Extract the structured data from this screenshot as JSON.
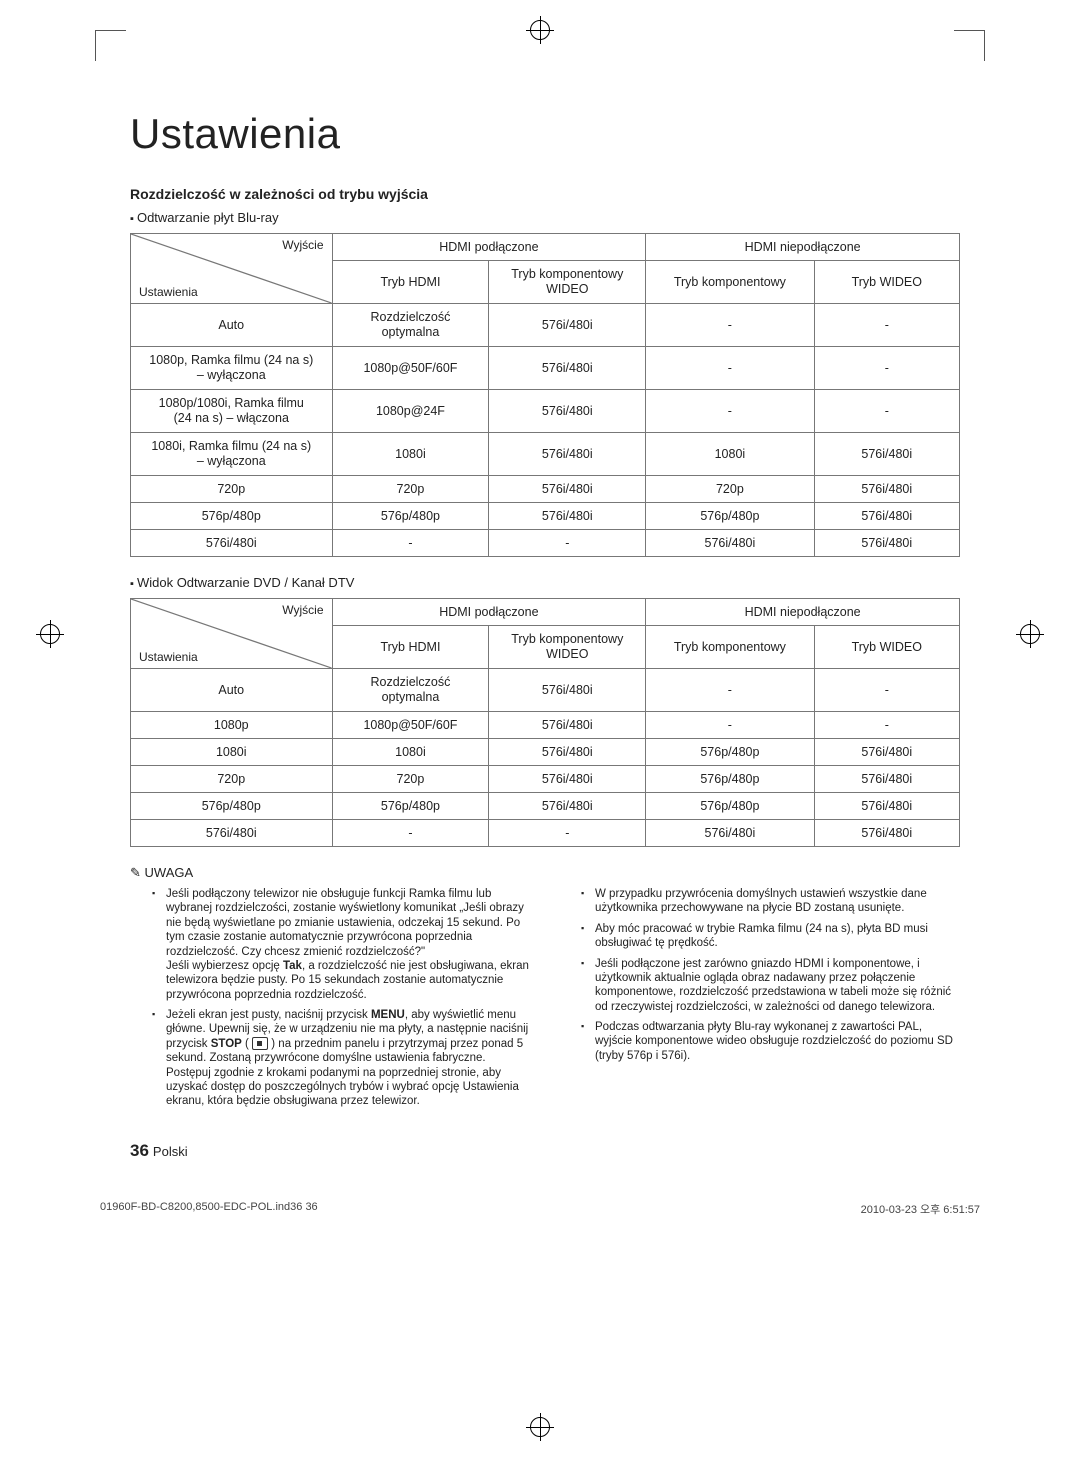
{
  "title": "Ustawienia",
  "section_heading": "Rozdzielczość w zależności od trybu wyjścia",
  "table1_caption": "Odtwarzanie płyt Blu-ray",
  "table2_caption": "Widok Odtwarzanie DVD / Kanał DTV",
  "diag": {
    "top": "Wyjście",
    "bottom": "Ustawienia"
  },
  "hdr": {
    "hdmi_on": "HDMI podłączone",
    "hdmi_off": "HDMI niepodłączone",
    "mode_hdmi": "Tryb HDMI",
    "mode_comp_video": "Tryb komponentowy WIDEO",
    "mode_comp_video_l1": "Tryb komponentowy",
    "mode_comp_video_l2": "WIDEO",
    "mode_comp": "Tryb komponentowy",
    "mode_video": "Tryb WIDEO"
  },
  "t1": {
    "rows": [
      {
        "c0": "Auto",
        "c1_l1": "Rozdzielczość",
        "c1_l2": "optymalna",
        "c2": "576i/480i",
        "c3": "-",
        "c4": "-"
      },
      {
        "c0_l1": "1080p, Ramka filmu (24 na s)",
        "c0_l2": "– wyłączona",
        "c1": "1080p@50F/60F",
        "c2": "576i/480i",
        "c3": "-",
        "c4": "-"
      },
      {
        "c0_l1": "1080p/1080i, Ramka filmu",
        "c0_l2": "(24 na s) – włączona",
        "c1": "1080p@24F",
        "c2": "576i/480i",
        "c3": "-",
        "c4": "-"
      },
      {
        "c0_l1": "1080i, Ramka filmu (24 na s)",
        "c0_l2": "– wyłączona",
        "c1": "1080i",
        "c2": "576i/480i",
        "c3": "1080i",
        "c4": "576i/480i"
      },
      {
        "c0": "720p",
        "c1": "720p",
        "c2": "576i/480i",
        "c3": "720p",
        "c4": "576i/480i"
      },
      {
        "c0": "576p/480p",
        "c1": "576p/480p",
        "c2": "576i/480i",
        "c3": "576p/480p",
        "c4": "576i/480i"
      },
      {
        "c0": "576i/480i",
        "c1": "-",
        "c2": "-",
        "c3": "576i/480i",
        "c4": "576i/480i"
      }
    ]
  },
  "t2": {
    "rows": [
      {
        "c0": "Auto",
        "c1_l1": "Rozdzielczość",
        "c1_l2": "optymalna",
        "c2": "576i/480i",
        "c3": "-",
        "c4": "-"
      },
      {
        "c0": "1080p",
        "c1": "1080p@50F/60F",
        "c2": "576i/480i",
        "c3": "-",
        "c4": "-"
      },
      {
        "c0": "1080i",
        "c1": "1080i",
        "c2": "576i/480i",
        "c3": "576p/480p",
        "c4": "576i/480i"
      },
      {
        "c0": "720p",
        "c1": "720p",
        "c2": "576i/480i",
        "c3": "576p/480p",
        "c4": "576i/480i"
      },
      {
        "c0": "576p/480p",
        "c1": "576p/480p",
        "c2": "576i/480i",
        "c3": "576p/480p",
        "c4": "576i/480i"
      },
      {
        "c0": "576i/480i",
        "c1": "-",
        "c2": "-",
        "c3": "576i/480i",
        "c4": "576i/480i"
      }
    ]
  },
  "note_label": "UWAGA",
  "notes_left": [
    "Jeśli podłączony telewizor nie obsługuje funkcji Ramka filmu lub wybranej rozdzielczości, zostanie wyświetlony komunikat „Jeśli obrazy nie będą wyświetlane po zmianie ustawienia, odczekaj 15 sekund. Po tym czasie zostanie automatycznie przywrócona poprzednia rozdzielczość. Czy chcesz zmienić rozdzielczość?\"\nJeśli wybierzesz opcję Tak, a rozdzielczość nie jest obsługiwana, ekran telewizora będzie pusty. Po 15 sekundach zostanie automatycznie przywrócona poprzednia rozdzielczość.",
    "Jeżeli ekran jest pusty, naciśnij przycisk MENU, aby wyświetlić menu główne. Upewnij się, że w urządzeniu nie ma płyty, a następnie naciśnij przycisk STOP (◼) na przednim panelu i przytrzymaj przez ponad 5 sekund. Zostaną przywrócone domyślne ustawienia fabryczne. Postępuj zgodnie z krokami podanymi na poprzedniej stronie, aby uzyskać dostęp do poszczególnych trybów i wybrać opcję Ustawienia ekranu, która będzie obsługiwana przez telewizor."
  ],
  "notes_right": [
    "W przypadku przywrócenia domyślnych ustawień wszystkie dane użytkownika przechowywane na płycie BD zostaną usunięte.",
    "Aby móc pracować w trybie Ramka filmu (24 na s), płyta BD musi obsługiwać tę prędkość.",
    "Jeśli podłączone jest zarówno gniazdo HDMI i komponentowe, i użytkownik aktualnie ogląda obraz nadawany przez połączenie komponentowe, rozdzielczość przedstawiona w tabeli może się różnić od rzeczywistej rozdzielczości, w zależności od danego telewizora.",
    "Podczas odtwarzania płyty Blu-ray wykonanej z zawartości PAL, wyjście komponentowe wideo obsługuje rozdzielczość do poziomu SD (tryby 576p i 576i)."
  ],
  "page_num": "36",
  "page_lang": "Polski",
  "footer_left": "01960F-BD-C8200,8500-EDC-POL.ind36   36",
  "footer_right": "2010-03-23   오후 6:51:57",
  "colors": {
    "border": "#777",
    "text": "#222"
  }
}
